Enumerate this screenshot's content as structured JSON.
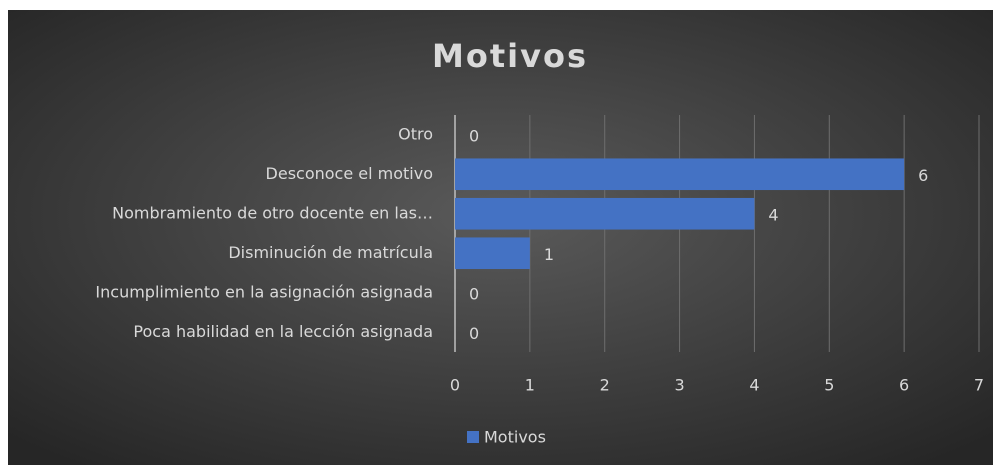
{
  "chart_data": {
    "type": "bar",
    "orientation": "horizontal",
    "title": "Motivos",
    "categories": [
      "Otro",
      "Desconoce el motivo",
      "Nombramiento de otro docente en las…",
      "Disminución de matrícula",
      "Incumplimiento en la asignación asignada",
      "Poca habilidad en la lección asignada"
    ],
    "series": [
      {
        "name": "Motivos",
        "color": "#4472c4",
        "values": [
          0,
          6,
          4,
          1,
          0,
          0
        ]
      }
    ],
    "xlim": [
      0,
      7
    ],
    "xticks": [
      0,
      1,
      2,
      3,
      4,
      5,
      6,
      7
    ],
    "grid": true,
    "legend": "bottom"
  }
}
